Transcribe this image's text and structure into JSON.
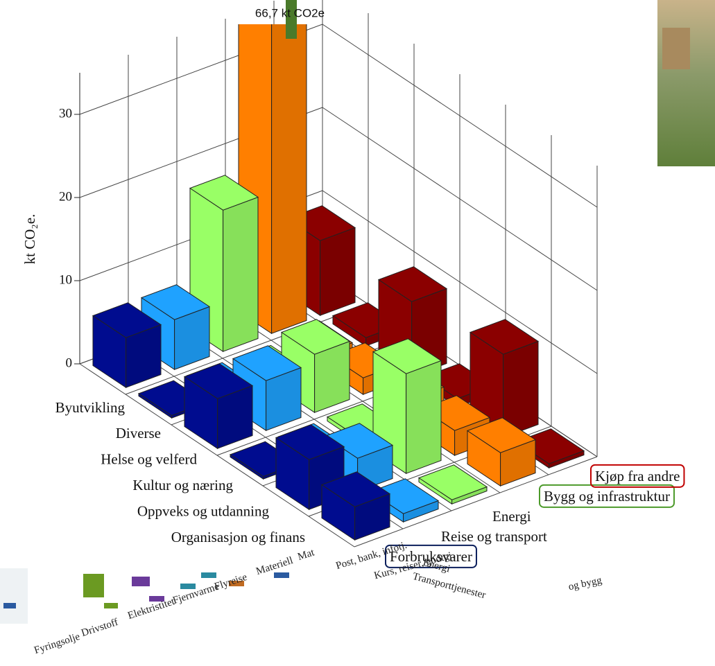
{
  "chart_data": {
    "type": "bar3d",
    "zlabel": "kt CO₂e.",
    "categories": [
      "Byutvikling",
      "Diverse",
      "Helse og velferd",
      "Kultur og næring",
      "Oppveks og utdanning",
      "Organisasjon og finans"
    ],
    "series": [
      {
        "name": "Forbruksvarer",
        "color": "#000c8f",
        "values": [
          6,
          0.3,
          6,
          0.3,
          6,
          4
        ]
      },
      {
        "name": "Reise og transport",
        "color": "#1fa2ff",
        "values": [
          6,
          0.3,
          6,
          0.3,
          4,
          1
        ]
      },
      {
        "name": "Energi",
        "color": "#99ff66",
        "values": [
          17,
          0.2,
          7,
          0.5,
          12,
          0.5
        ]
      },
      {
        "name": "Bygg og infrastruktur",
        "color": "#ff7f00",
        "values": [
          66.7,
          1,
          2,
          3,
          3,
          4
        ],
        "value_labels": [
          "66,7 kt CO2e",
          null,
          null,
          null,
          null,
          null
        ]
      },
      {
        "name": "Kjøp fra andre",
        "color": "#8b0000",
        "values": [
          9,
          1,
          9,
          1,
          10,
          0.5
        ]
      }
    ],
    "zlim": [
      0,
      35
    ],
    "zticks": [
      0,
      10,
      20,
      30
    ],
    "grid": true
  },
  "background_chart_labels": [
    "Fyringsolje",
    "Drivstoff",
    "Elektristitet",
    "Fjernvarme",
    "Flyreise",
    "Materiell",
    "Mat",
    "Post, bank, infotj.",
    "Kurs, reiser, godtgj.",
    "Transporttjenester",
    "Energi",
    "og bygg"
  ]
}
